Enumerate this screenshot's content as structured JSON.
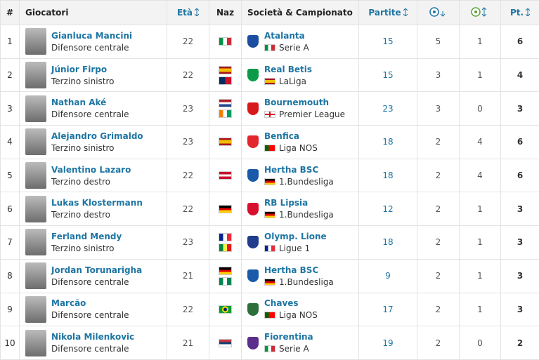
{
  "table": {
    "header": {
      "rank": "#",
      "player": "Giocatori",
      "age": "Età",
      "nationality": "Naz",
      "club": "Società & Campionato",
      "matches": "Partite",
      "points": "Pt."
    },
    "rows": [
      {
        "rank": 1,
        "name": "Gianluca Mancini",
        "position": "Difensore centrale",
        "age": 22,
        "club": "Atalanta",
        "league": "Serie A",
        "matches": 15,
        "goals": 5,
        "assists": 1,
        "points": 6
      },
      {
        "rank": 2,
        "name": "Júnior Firpo",
        "position": "Terzino sinistro",
        "age": 22,
        "club": "Real Betis",
        "league": "LaLiga",
        "matches": 15,
        "goals": 3,
        "assists": 1,
        "points": 4
      },
      {
        "rank": 3,
        "name": "Nathan Aké",
        "position": "Difensore centrale",
        "age": 23,
        "club": "Bournemouth",
        "league": "Premier League",
        "matches": 23,
        "goals": 3,
        "assists": 0,
        "points": 3
      },
      {
        "rank": 4,
        "name": "Alejandro Grimaldo",
        "position": "Terzino sinistro",
        "age": 23,
        "club": "Benfica",
        "league": "Liga NOS",
        "matches": 18,
        "goals": 2,
        "assists": 4,
        "points": 6
      },
      {
        "rank": 5,
        "name": "Valentino Lazaro",
        "position": "Terzino destro",
        "age": 22,
        "club": "Hertha BSC",
        "league": "1.Bundesliga",
        "matches": 18,
        "goals": 2,
        "assists": 4,
        "points": 6
      },
      {
        "rank": 6,
        "name": "Lukas Klostermann",
        "position": "Terzino destro",
        "age": 22,
        "club": "RB Lipsia",
        "league": "1.Bundesliga",
        "matches": 12,
        "goals": 2,
        "assists": 1,
        "points": 3
      },
      {
        "rank": 7,
        "name": "Ferland Mendy",
        "position": "Terzino sinistro",
        "age": 23,
        "club": "Olymp. Lione",
        "league": "Ligue 1",
        "matches": 18,
        "goals": 2,
        "assists": 1,
        "points": 3
      },
      {
        "rank": 8,
        "name": "Jordan Torunarigha",
        "position": "Difensore centrale",
        "age": 21,
        "club": "Hertha BSC",
        "league": "1.Bundesliga",
        "matches": 9,
        "goals": 2,
        "assists": 1,
        "points": 3
      },
      {
        "rank": 9,
        "name": "Marcão",
        "position": "Difensore centrale",
        "age": 22,
        "club": "Chaves",
        "league": "Liga NOS",
        "matches": 17,
        "goals": 2,
        "assists": 1,
        "points": 3
      },
      {
        "rank": 10,
        "name": "Nikola Milenkovic",
        "position": "Difensore centrale",
        "age": 21,
        "club": "Fiorentina",
        "league": "Serie A",
        "matches": 19,
        "goals": 2,
        "assists": 0,
        "points": 2
      }
    ]
  }
}
